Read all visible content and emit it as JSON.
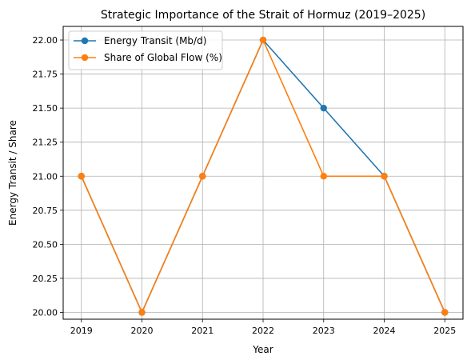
{
  "chart_data": {
    "type": "line",
    "title": "Strategic Importance of the Strait of Hormuz (2019–2025)",
    "xlabel": "Year",
    "ylabel": "Energy Transit / Share",
    "categories": [
      "2019",
      "2020",
      "2021",
      "2022",
      "2023",
      "2024",
      "2025"
    ],
    "x": [
      2019,
      2020,
      2021,
      2022,
      2023,
      2024,
      2025
    ],
    "xlim": [
      2018.7,
      2025.3
    ],
    "ylim": [
      19.95,
      22.1
    ],
    "yticks": [
      "20.00",
      "20.25",
      "20.50",
      "20.75",
      "21.00",
      "21.25",
      "21.50",
      "21.75",
      "22.00"
    ],
    "grid": true,
    "legend_position": "top-left",
    "series": [
      {
        "name": "Energy Transit (Mb/d)",
        "color": "#1f77b4",
        "marker": "circle",
        "values": [
          21,
          20,
          21,
          22,
          21.5,
          21,
          20
        ]
      },
      {
        "name": "Share of Global Flow (%)",
        "color": "#ff7f0e",
        "marker": "circle",
        "values": [
          21,
          20,
          21,
          22,
          21,
          21,
          20
        ]
      }
    ]
  }
}
